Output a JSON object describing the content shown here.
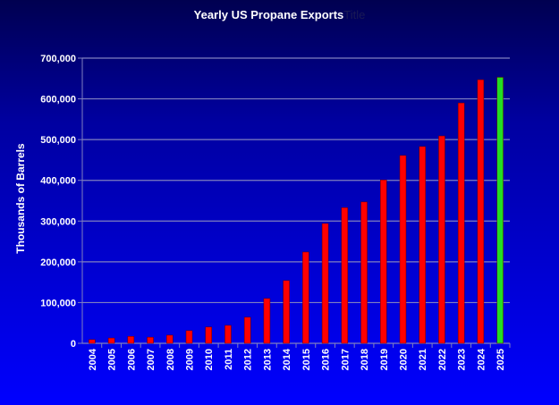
{
  "chart_data": {
    "type": "bar",
    "title": "Yearly US Propane Exports",
    "title_ghost": "Title",
    "xlabel": "",
    "ylabel": "Thousands of Barrels",
    "ylim": [
      0,
      700000
    ],
    "yticks": [
      "0",
      "100,000",
      "200,000",
      "300,000",
      "400,000",
      "500,000",
      "600,000",
      "700,000"
    ],
    "grid": true,
    "categories": [
      "2004",
      "2005",
      "2006",
      "2007",
      "2008",
      "2009",
      "2010",
      "2011",
      "2012",
      "2013",
      "2014",
      "2015",
      "2016",
      "2017",
      "2018",
      "2019",
      "2020",
      "2021",
      "2022",
      "2023",
      "2024",
      "2025"
    ],
    "values": [
      9000,
      13000,
      17000,
      15000,
      20000,
      31000,
      40000,
      44000,
      64000,
      110000,
      154000,
      224000,
      294000,
      333000,
      347000,
      401000,
      461000,
      483000,
      509000,
      590000,
      647000,
      653000
    ],
    "colors": {
      "bar": "#ff0000",
      "highlight": "#22dd22",
      "highlight_category": "2025",
      "grid": "#8080c0"
    }
  }
}
